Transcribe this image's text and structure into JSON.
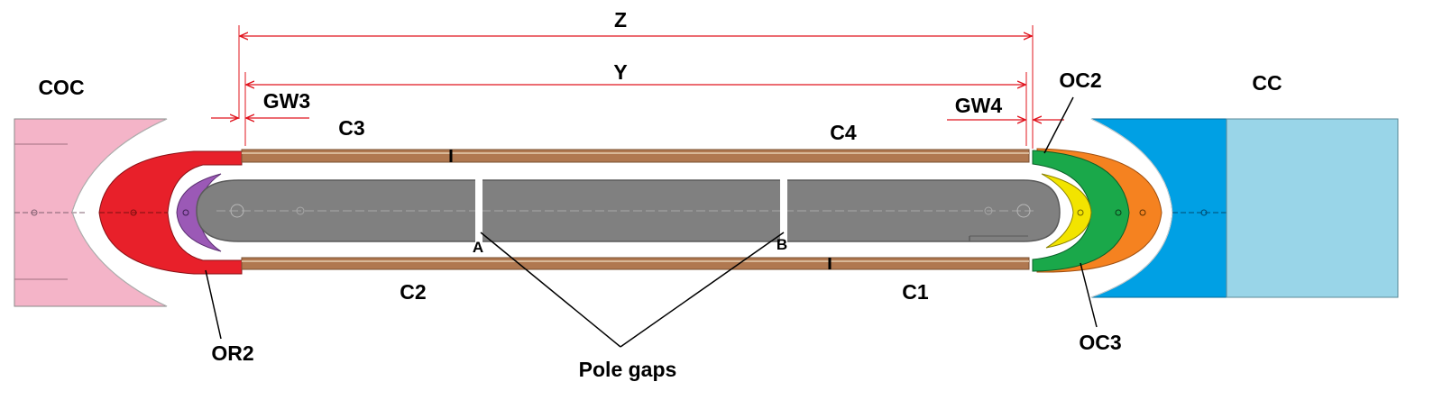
{
  "labels": {
    "z": "Z",
    "y": "Y",
    "coc": "COC",
    "cc": "CC",
    "gw3": "GW3",
    "gw4": "GW4",
    "c3": "C3",
    "c4": "C4",
    "c2": "C2",
    "c1": "C1",
    "oc2": "OC2",
    "oc3": "OC3",
    "or2": "OR2",
    "a": "A",
    "b": "B",
    "pole_gaps": "Pole gaps"
  },
  "colors": {
    "dimension": "#e0141e",
    "coc_block": "#f4b4c8",
    "cc_block": "#00a0e4",
    "cc_tail": "#99d5e8",
    "red_coil": "#e8202a",
    "purple_coil": "#9b59b6",
    "green_coil": "#1aa84a",
    "orange_coil": "#f58220",
    "yellow_coil": "#f2e400",
    "pole": "#808080",
    "pole_edge": "#5a5a5a",
    "conductor": "#b07850",
    "conductor_light": "#d8b898"
  }
}
